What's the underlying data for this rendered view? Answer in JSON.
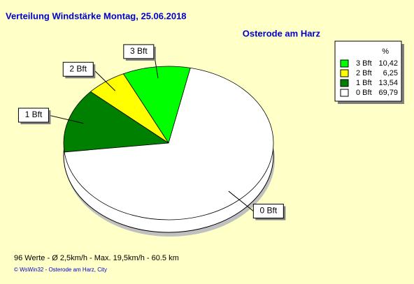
{
  "chart_data": {
    "type": "pie",
    "title": "Verteilung Windstärke  Montag, 25.06.2018",
    "subtitle": "Osterode am Harz",
    "categories": [
      "3 Bft",
      "2 Bft",
      "1 Bft",
      "0 Bft"
    ],
    "values": [
      10.42,
      6.25,
      13.54,
      69.79
    ],
    "value_labels": [
      "10,42",
      "6,25",
      "13,54",
      "69,79"
    ],
    "colors": [
      "#00ff00",
      "#ffff00",
      "#008000",
      "#ffffff"
    ],
    "legend_header": "%",
    "notes": [
      "96 Werte   -   Ø 2,5km/h  -  Max. 19,5km/h   -   60.5 km",
      "© WsWin32  -  Osterode am Harz, City"
    ]
  }
}
